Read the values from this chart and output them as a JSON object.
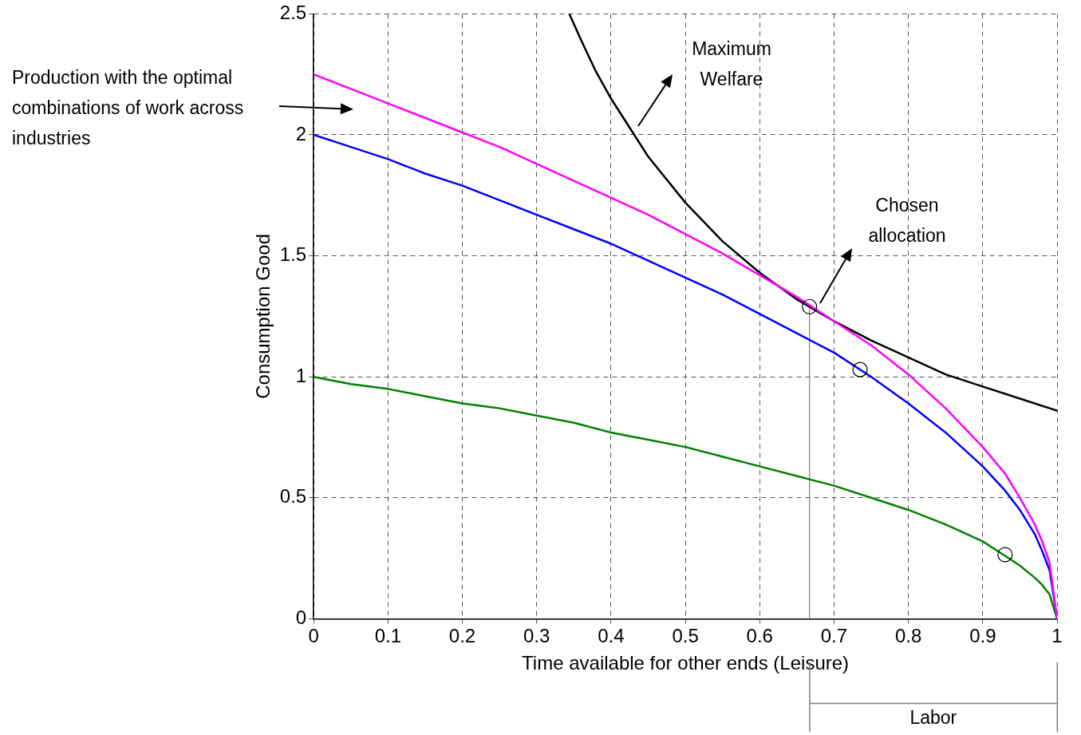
{
  "chart_data": {
    "type": "line",
    "xlabel": "Time available for other ends (Leisure)",
    "ylabel": "Consumption Good",
    "xlim": [
      0,
      1
    ],
    "xticks": [
      0,
      0.1,
      0.2,
      0.3,
      0.4,
      0.5,
      0.6,
      0.7,
      0.8,
      0.9,
      1
    ],
    "ylim": [
      0,
      2.5
    ],
    "yticks": [
      0,
      0.5,
      1,
      1.5,
      2,
      2.5
    ],
    "grid": true,
    "legend": false,
    "marker": "none",
    "line_style": "solid",
    "series": [
      {
        "color": "#ff00ff",
        "x": [
          0,
          0.05,
          0.1,
          0.15,
          0.2,
          0.25,
          0.3,
          0.35,
          0.4,
          0.45,
          0.5,
          0.55,
          0.6,
          0.65,
          0.7,
          0.75,
          0.8,
          0.85,
          0.9,
          0.93,
          0.95,
          0.97,
          0.98,
          0.99,
          1
        ],
        "values": [
          2.25,
          2.19,
          2.13,
          2.07,
          2.01,
          1.95,
          1.88,
          1.81,
          1.74,
          1.67,
          1.59,
          1.51,
          1.42,
          1.33,
          1.23,
          1.13,
          1.01,
          0.87,
          0.71,
          0.6,
          0.5,
          0.39,
          0.32,
          0.23,
          0
        ]
      },
      {
        "color": "#0000ff",
        "x": [
          0,
          0.05,
          0.1,
          0.15,
          0.2,
          0.25,
          0.3,
          0.35,
          0.4,
          0.45,
          0.5,
          0.55,
          0.6,
          0.65,
          0.7,
          0.75,
          0.8,
          0.85,
          0.9,
          0.93,
          0.95,
          0.97,
          0.98,
          0.99,
          1
        ],
        "values": [
          2,
          1.95,
          1.9,
          1.84,
          1.79,
          1.73,
          1.67,
          1.61,
          1.55,
          1.48,
          1.41,
          1.34,
          1.26,
          1.18,
          1.1,
          1,
          0.89,
          0.77,
          0.63,
          0.53,
          0.45,
          0.35,
          0.28,
          0.2,
          0
        ]
      },
      {
        "color": "#008000",
        "x": [
          0,
          0.05,
          0.1,
          0.15,
          0.2,
          0.25,
          0.3,
          0.35,
          0.4,
          0.45,
          0.5,
          0.55,
          0.6,
          0.65,
          0.7,
          0.75,
          0.8,
          0.85,
          0.9,
          0.93,
          0.95,
          0.97,
          0.98,
          0.99,
          1
        ],
        "values": [
          1,
          0.97,
          0.95,
          0.92,
          0.89,
          0.87,
          0.84,
          0.81,
          0.77,
          0.74,
          0.71,
          0.67,
          0.63,
          0.59,
          0.55,
          0.5,
          0.45,
          0.39,
          0.32,
          0.26,
          0.22,
          0.17,
          0.14,
          0.1,
          0
        ]
      },
      {
        "color": "#000000",
        "x": [
          0.344,
          0.36,
          0.38,
          0.4,
          0.45,
          0.5,
          0.55,
          0.6,
          0.65,
          0.7,
          0.75,
          0.8,
          0.85,
          0.9,
          0.95,
          1
        ],
        "values": [
          2.5,
          2.39,
          2.26,
          2.15,
          1.91,
          1.72,
          1.56,
          1.43,
          1.32,
          1.23,
          1.15,
          1.08,
          1.01,
          0.96,
          0.91,
          0.86
        ]
      },
      {
        "color": "#808080",
        "x": [
          0.667,
          0.667
        ],
        "values": [
          0,
          1.29
        ]
      },
      {
        "type": "scatter",
        "color": "#000000",
        "marker": "circle",
        "x": [
          0.667,
          0.735,
          0.93
        ],
        "values": [
          1.29,
          1.03,
          0.265
        ]
      }
    ],
    "annotations": [
      "Production with the optimal combinations of work across industries",
      "Maximum Welfare",
      "Chosen allocation",
      "Labor"
    ]
  }
}
